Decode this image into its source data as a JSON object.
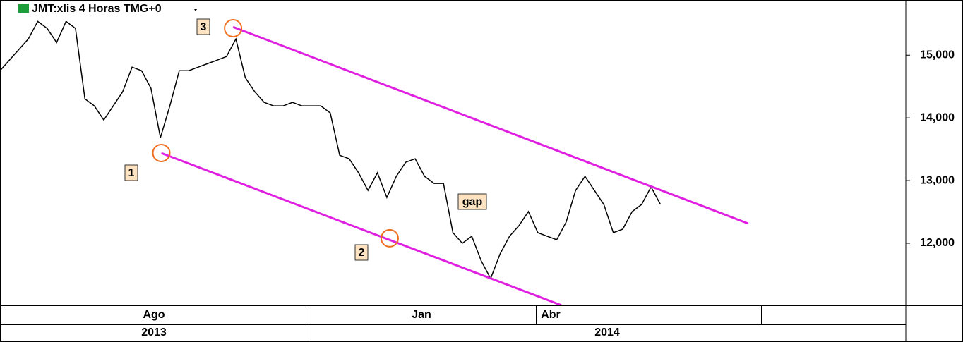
{
  "chart_data": {
    "type": "line",
    "title": "JMT:xlis 4 Horas TMG+0",
    "series": [
      {
        "name": "JMT",
        "color": "#000000",
        "values": [
          14753,
          14921,
          15090,
          15258,
          15539,
          15427,
          15202,
          15539,
          15427,
          14303,
          14191,
          13966,
          14191,
          14416,
          14809,
          14753,
          14472,
          13685,
          14191,
          14753,
          14753,
          14809,
          14865,
          14921,
          14978,
          15258,
          14640,
          14416,
          14247,
          14191,
          14191,
          14247,
          14191,
          14191,
          14191,
          14079,
          13404,
          13348,
          13124,
          12843,
          13124,
          12730,
          13067,
          13292,
          13348,
          13067,
          12955,
          12955,
          12169,
          12000,
          12112,
          11719,
          11438,
          11831,
          12112,
          12281,
          12506,
          12169,
          12112,
          12056,
          12337,
          12843,
          13067,
          12843,
          12618,
          12169,
          12225,
          12506,
          12618,
          12899,
          12618
        ]
      }
    ],
    "xlim": [
      0,
      96
    ],
    "ylim": [
      11010,
      15880
    ],
    "yticks": [
      {
        "value": 12000,
        "label": "12,000"
      },
      {
        "value": 13000,
        "label": "13,000"
      },
      {
        "value": 14000,
        "label": "14,000"
      },
      {
        "value": 15000,
        "label": "15,000"
      }
    ],
    "months": [
      "Ago",
      "Jan",
      "Abr"
    ],
    "years": [
      "2013",
      "2014"
    ],
    "channel_color": "#e020e0",
    "channel_lines": [
      {
        "x": [
          24.7,
          79.3
        ],
        "y": [
          15450,
          12315
        ]
      },
      {
        "x": [
          17.1,
          59.5
        ],
        "y": [
          13438,
          11011
        ]
      }
    ],
    "circle_color": "#f07020",
    "circles": [
      {
        "x": 17.1,
        "y": 13440
      },
      {
        "x": 41.3,
        "y": 12080
      },
      {
        "x": 24.7,
        "y": 15430
      }
    ],
    "annotations": [
      "1",
      "2",
      "3",
      "gap"
    ]
  }
}
